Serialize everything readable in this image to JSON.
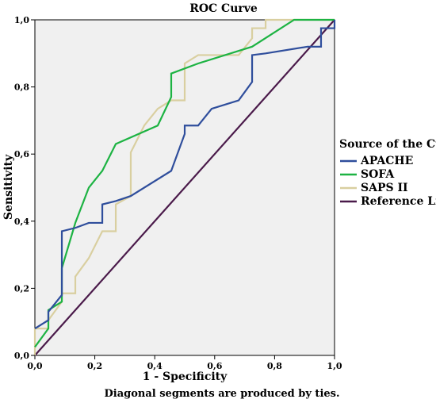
{
  "chart_data": {
    "type": "line",
    "title": "ROC Curve",
    "xlabel": "1 - Specificity",
    "ylabel": "Sensitivity",
    "footnote": "Diagonal segments are produced by ties.",
    "xlim": [
      0,
      1
    ],
    "ylim": [
      0,
      1
    ],
    "x_ticks": [
      "0,0",
      "0,2",
      "0,4",
      "0,6",
      "0,8",
      "1,0"
    ],
    "y_ticks": [
      "0,0",
      "0,2",
      "0,4",
      "0,6",
      "0,8",
      "1,0"
    ],
    "grid": false,
    "background": "#f0f0f0",
    "legend": {
      "title": "Source of the Curve",
      "placement": "right"
    },
    "series": [
      {
        "name": "APACHE",
        "color": "#2f4e9c",
        "points": [
          [
            0,
            0.08
          ],
          [
            0.045,
            0.105
          ],
          [
            0.045,
            0.13
          ],
          [
            0.09,
            0.18
          ],
          [
            0.09,
            0.37
          ],
          [
            0.135,
            0.38
          ],
          [
            0.18,
            0.395
          ],
          [
            0.225,
            0.395
          ],
          [
            0.225,
            0.45
          ],
          [
            0.27,
            0.46
          ],
          [
            0.32,
            0.475
          ],
          [
            0.455,
            0.55
          ],
          [
            0.5,
            0.66
          ],
          [
            0.5,
            0.685
          ],
          [
            0.545,
            0.685
          ],
          [
            0.59,
            0.735
          ],
          [
            0.68,
            0.76
          ],
          [
            0.725,
            0.815
          ],
          [
            0.725,
            0.895
          ],
          [
            0.77,
            0.9
          ],
          [
            0.91,
            0.92
          ],
          [
            0.955,
            0.92
          ],
          [
            0.955,
            0.975
          ],
          [
            1,
            0.975
          ],
          [
            1,
            1
          ]
        ]
      },
      {
        "name": "SOFA",
        "color": "#1db343",
        "points": [
          [
            0,
            0.025
          ],
          [
            0.045,
            0.08
          ],
          [
            0.045,
            0.135
          ],
          [
            0.09,
            0.16
          ],
          [
            0.09,
            0.26
          ],
          [
            0.135,
            0.395
          ],
          [
            0.18,
            0.5
          ],
          [
            0.225,
            0.55
          ],
          [
            0.27,
            0.63
          ],
          [
            0.41,
            0.685
          ],
          [
            0.455,
            0.77
          ],
          [
            0.455,
            0.84
          ],
          [
            0.545,
            0.87
          ],
          [
            0.725,
            0.92
          ],
          [
            0.865,
            1
          ],
          [
            1,
            1
          ]
        ]
      },
      {
        "name": "SAPS II",
        "color": "#d9cfa0",
        "points": [
          [
            0,
            0
          ],
          [
            0,
            0.08
          ],
          [
            0.045,
            0.08
          ],
          [
            0.045,
            0.105
          ],
          [
            0.09,
            0.16
          ],
          [
            0.09,
            0.185
          ],
          [
            0.135,
            0.185
          ],
          [
            0.135,
            0.235
          ],
          [
            0.18,
            0.29
          ],
          [
            0.225,
            0.37
          ],
          [
            0.27,
            0.37
          ],
          [
            0.27,
            0.45
          ],
          [
            0.32,
            0.475
          ],
          [
            0.32,
            0.605
          ],
          [
            0.365,
            0.685
          ],
          [
            0.41,
            0.735
          ],
          [
            0.455,
            0.76
          ],
          [
            0.5,
            0.76
          ],
          [
            0.5,
            0.87
          ],
          [
            0.545,
            0.895
          ],
          [
            0.68,
            0.895
          ],
          [
            0.725,
            0.945
          ],
          [
            0.725,
            0.975
          ],
          [
            0.77,
            0.975
          ],
          [
            0.77,
            1
          ],
          [
            1,
            1
          ]
        ]
      },
      {
        "name": "Reference Line",
        "color": "#4a1a4a",
        "points": [
          [
            0,
            0
          ],
          [
            1,
            1
          ]
        ]
      }
    ]
  }
}
